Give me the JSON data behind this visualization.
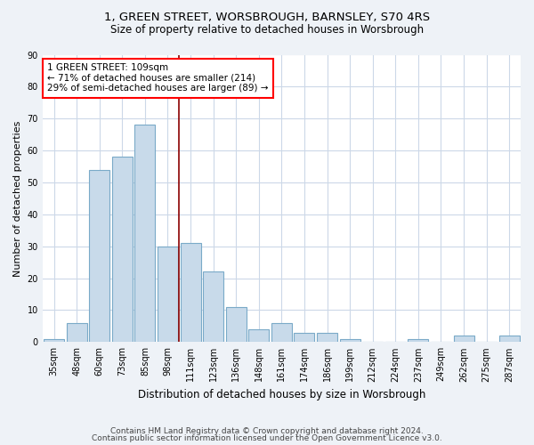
{
  "title1": "1, GREEN STREET, WORSBROUGH, BARNSLEY, S70 4RS",
  "title2": "Size of property relative to detached houses in Worsbrough",
  "xlabel": "Distribution of detached houses by size in Worsbrough",
  "ylabel": "Number of detached properties",
  "categories": [
    "35sqm",
    "48sqm",
    "60sqm",
    "73sqm",
    "85sqm",
    "98sqm",
    "111sqm",
    "123sqm",
    "136sqm",
    "148sqm",
    "161sqm",
    "174sqm",
    "186sqm",
    "199sqm",
    "212sqm",
    "224sqm",
    "237sqm",
    "249sqm",
    "262sqm",
    "275sqm",
    "287sqm"
  ],
  "values": [
    1,
    6,
    54,
    58,
    68,
    30,
    31,
    22,
    11,
    4,
    6,
    3,
    3,
    1,
    0,
    0,
    1,
    0,
    2,
    0,
    2
  ],
  "bar_color": "#c8daea",
  "bar_edge_color": "#7aaac8",
  "annotation_text": "1 GREEN STREET: 109sqm\n← 71% of detached houses are smaller (214)\n29% of semi-detached houses are larger (89) →",
  "footnote1": "Contains HM Land Registry data © Crown copyright and database right 2024.",
  "footnote2": "Contains public sector information licensed under the Open Government Licence v3.0.",
  "bg_color": "#eef2f7",
  "plot_bg_color": "#ffffff",
  "grid_color": "#ccd8e8",
  "ylim": [
    0,
    90
  ],
  "subject_bin_idx": 6
}
